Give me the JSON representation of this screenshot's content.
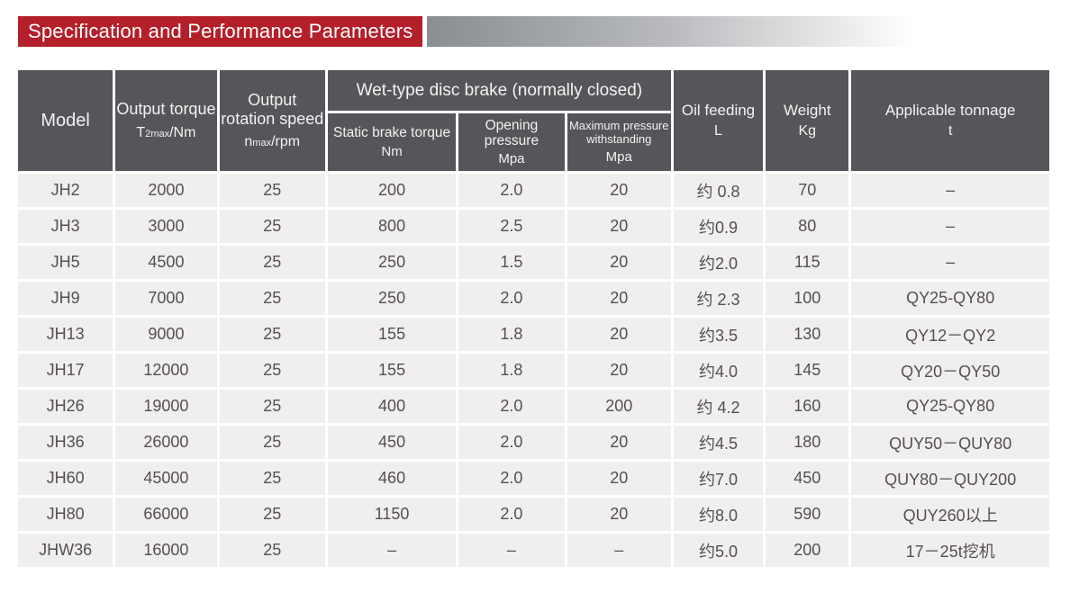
{
  "banner": {
    "title": "Specification and Performance Parameters"
  },
  "colors": {
    "banner_bg": "#b3202a",
    "header_bg": "#555659",
    "row_bg": "#f0efee",
    "cell_text": "#545050",
    "gradient_start": "#8a8d91"
  },
  "table": {
    "header": {
      "model": "Model",
      "output_torque": "Output torque",
      "output_torque_sym_main": "T",
      "output_torque_sym_sub": "2max",
      "output_torque_sym_unit": "/Nm",
      "output_speed": "Output rotation speed",
      "output_speed_sym_main": "n",
      "output_speed_sym_sub": "max",
      "output_speed_sym_unit": "/rpm",
      "brake_group": "Wet-type disc brake (normally closed)",
      "static_brake": "Static brake torque",
      "static_brake_unit": "Nm",
      "opening_pressure": "Opening pressure",
      "opening_pressure_unit": "Mpa",
      "max_pressure": "Maximum pressure withstanding",
      "max_pressure_unit": "Mpa",
      "oil_feeding": "Oil feeding",
      "oil_feeding_unit": "L",
      "weight": "Weight",
      "weight_unit": "Kg",
      "tonnage": "Applicable tonnage",
      "tonnage_unit": "t"
    },
    "rows": [
      {
        "model": "JH2",
        "output_torque": "2000",
        "output_speed": "25",
        "static_brake_torque": "200",
        "opening_pressure": "2.0",
        "max_pressure": "20",
        "oil_feeding": "约 0.8",
        "weight": "70",
        "tonnage": "–"
      },
      {
        "model": "JH3",
        "output_torque": "3000",
        "output_speed": "25",
        "static_brake_torque": "800",
        "opening_pressure": "2.5",
        "max_pressure": "20",
        "oil_feeding": "约0.9",
        "weight": "80",
        "tonnage": "–"
      },
      {
        "model": "JH5",
        "output_torque": "4500",
        "output_speed": "25",
        "static_brake_torque": "250",
        "opening_pressure": "1.5",
        "max_pressure": "20",
        "oil_feeding": "约2.0",
        "weight": "115",
        "tonnage": "–"
      },
      {
        "model": "JH9",
        "output_torque": "7000",
        "output_speed": "25",
        "static_brake_torque": "250",
        "opening_pressure": "2.0",
        "max_pressure": "20",
        "oil_feeding": "约 2.3",
        "weight": "100",
        "tonnage": "QY25-QY80"
      },
      {
        "model": "JH13",
        "output_torque": "9000",
        "output_speed": "25",
        "static_brake_torque": "155",
        "opening_pressure": "1.8",
        "max_pressure": "20",
        "oil_feeding": "约3.5",
        "weight": "130",
        "tonnage": "QY12－QY2"
      },
      {
        "model": "JH17",
        "output_torque": "12000",
        "output_speed": "25",
        "static_brake_torque": "155",
        "opening_pressure": "1.8",
        "max_pressure": "20",
        "oil_feeding": "约4.0",
        "weight": "145",
        "tonnage": "QY20－QY50"
      },
      {
        "model": "JH26",
        "output_torque": "19000",
        "output_speed": "25",
        "static_brake_torque": "400",
        "opening_pressure": "2.0",
        "max_pressure": "200",
        "oil_feeding": "约 4.2",
        "weight": "160",
        "tonnage": "QY25-QY80"
      },
      {
        "model": "JH36",
        "output_torque": "26000",
        "output_speed": "25",
        "static_brake_torque": "450",
        "opening_pressure": "2.0",
        "max_pressure": "20",
        "oil_feeding": "约4.5",
        "weight": "180",
        "tonnage": "QUY50－QUY80"
      },
      {
        "model": "JH60",
        "output_torque": "45000",
        "output_speed": "25",
        "static_brake_torque": "460",
        "opening_pressure": "2.0",
        "max_pressure": "20",
        "oil_feeding": "约7.0",
        "weight": "450",
        "tonnage": "QUY80－QUY200"
      },
      {
        "model": "JH80",
        "output_torque": "66000",
        "output_speed": "25",
        "static_brake_torque": "1150",
        "opening_pressure": "2.0",
        "max_pressure": "20",
        "oil_feeding": "约8.0",
        "weight": "590",
        "tonnage": "QUY260以上"
      },
      {
        "model": "JHW36",
        "output_torque": "16000",
        "output_speed": "25",
        "static_brake_torque": "–",
        "opening_pressure": "–",
        "max_pressure": "–",
        "oil_feeding": "约5.0",
        "weight": "200",
        "tonnage": "17－25t挖机"
      }
    ]
  }
}
